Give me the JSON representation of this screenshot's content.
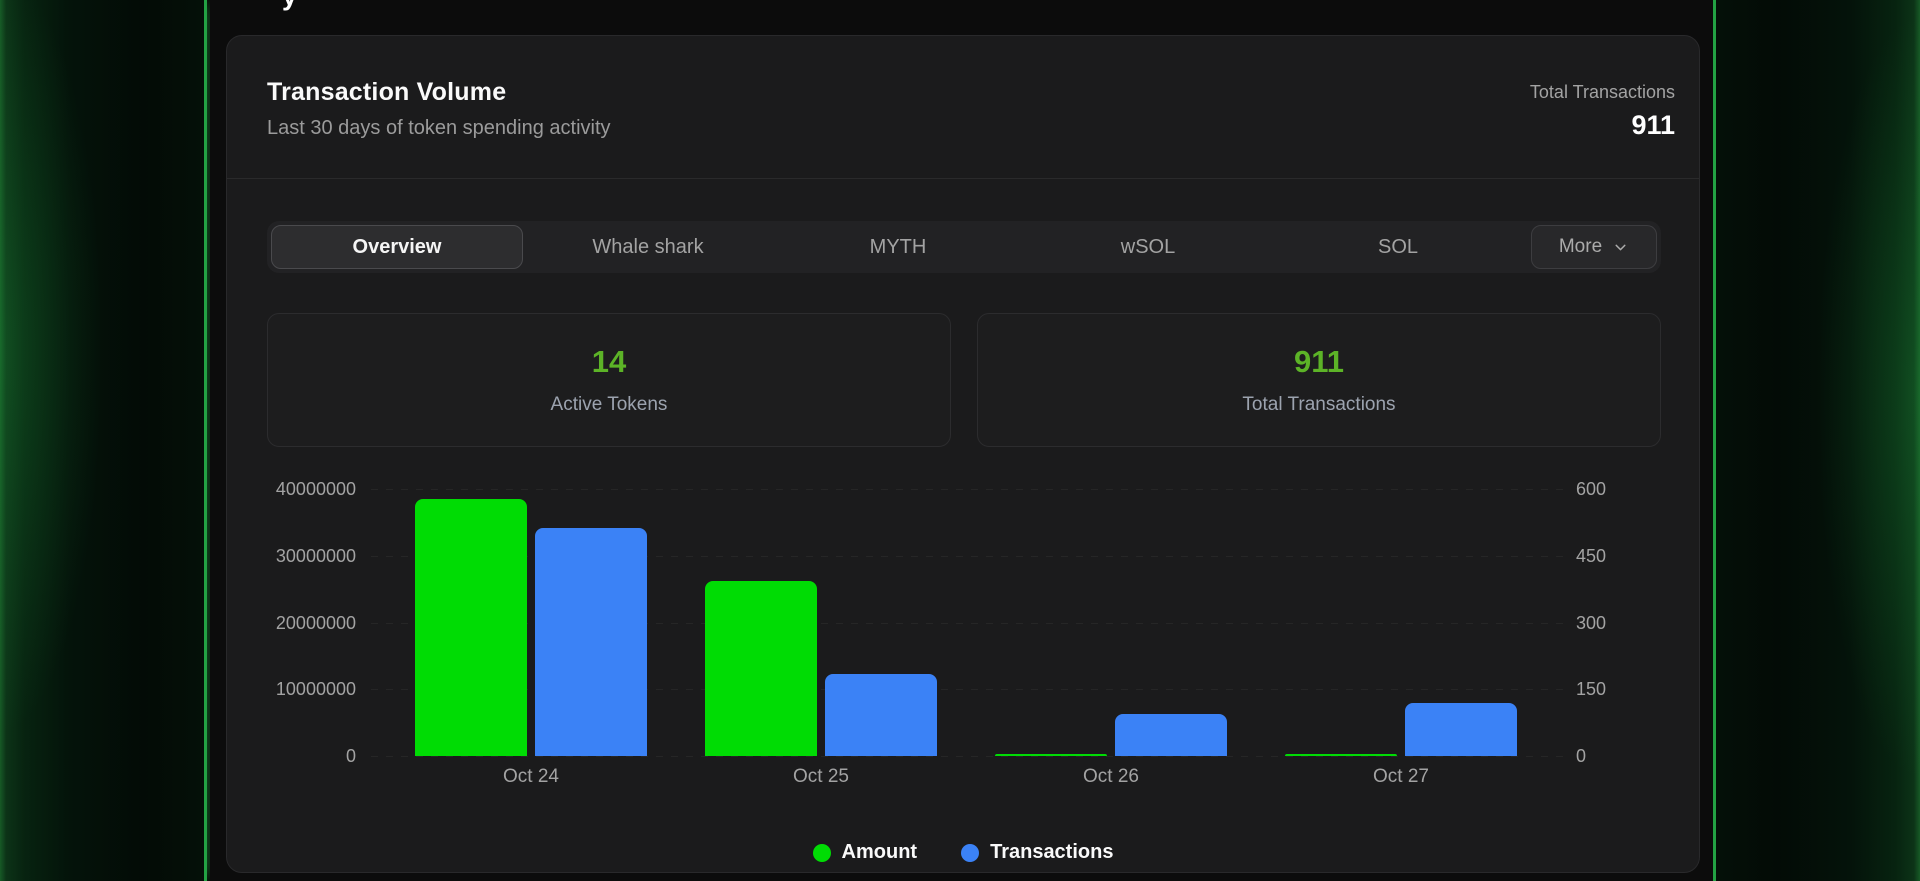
{
  "page": {
    "top_partial_text": "y"
  },
  "header": {
    "title": "Transaction Volume",
    "subtitle": "Last 30 days of token spending activity",
    "total_label": "Total Transactions",
    "total_value": "911"
  },
  "tabs": {
    "items": [
      "Overview",
      "Whale shark",
      "MYTH",
      "wSOL",
      "SOL"
    ],
    "selected": "Overview",
    "more_label": "More"
  },
  "stats": [
    {
      "value": "14",
      "label": "Active Tokens"
    },
    {
      "value": "911",
      "label": "Total Transactions"
    }
  ],
  "chart_data": {
    "type": "bar",
    "categories": [
      "Oct 24",
      "Oct 25",
      "Oct 26",
      "Oct 27"
    ],
    "series": [
      {
        "name": "Amount",
        "axis": "left",
        "color": "#00dc04",
        "values": [
          38500000,
          26200000,
          300000,
          250000
        ]
      },
      {
        "name": "Transactions",
        "axis": "right",
        "color": "#3b82f6",
        "values": [
          512,
          185,
          95,
          119
        ]
      }
    ],
    "left_axis": {
      "ticks": [
        "40000000",
        "30000000",
        "20000000",
        "10000000",
        "0"
      ],
      "max": 40000000
    },
    "right_axis": {
      "ticks": [
        "600",
        "450",
        "300",
        "150",
        "0"
      ],
      "max": 600
    },
    "grid": "dashed-horizontal",
    "legend_position": "bottom"
  },
  "legend": [
    {
      "label": "Amount",
      "color": "#00dc04"
    },
    {
      "label": "Transactions",
      "color": "#3b82f6"
    }
  ],
  "colors": {
    "accent_green": "#5cb327",
    "bar_green": "#00dc04",
    "bar_blue": "#3b82f6",
    "edge_glow_green": "#23a344",
    "card_bg": "#1b1b1c",
    "page_bg": "#0c0c0c"
  }
}
